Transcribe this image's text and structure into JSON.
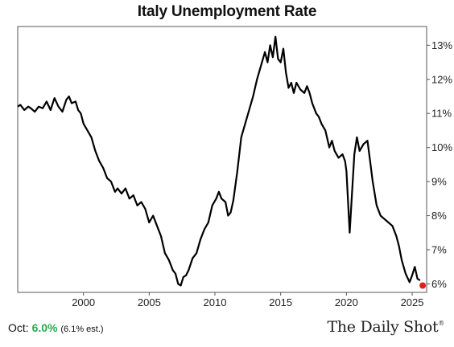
{
  "chart_data": {
    "type": "line",
    "title": "Italy Unemployment Rate",
    "xlabel": "",
    "ylabel": "",
    "xlim": [
      1995.0,
      2026.1
    ],
    "ylim": [
      5.75,
      13.55
    ],
    "grid": false,
    "x_ticks": [
      2000,
      2005,
      2010,
      2015,
      2020,
      2025
    ],
    "x_tick_labels": [
      "2000",
      "2005",
      "2010",
      "2015",
      "2020",
      "2025"
    ],
    "y_ticks": [
      6,
      7,
      8,
      9,
      10,
      11,
      12,
      13
    ],
    "y_tick_labels": [
      "6%",
      "7%",
      "8%",
      "9%",
      "10%",
      "11%",
      "12%",
      "13%"
    ],
    "y_axis_side": "right",
    "line_color": "#000000",
    "highlight_color": "#e0201c",
    "series": [
      {
        "points": [
          [
            1995.0,
            11.2
          ],
          [
            1995.2,
            11.25
          ],
          [
            1995.5,
            11.1
          ],
          [
            1995.8,
            11.2
          ],
          [
            1996.0,
            11.15
          ],
          [
            1996.3,
            11.05
          ],
          [
            1996.6,
            11.2
          ],
          [
            1996.9,
            11.15
          ],
          [
            1997.2,
            11.35
          ],
          [
            1997.5,
            11.1
          ],
          [
            1997.8,
            11.45
          ],
          [
            1998.1,
            11.2
          ],
          [
            1998.4,
            11.05
          ],
          [
            1998.7,
            11.4
          ],
          [
            1998.9,
            11.5
          ],
          [
            1999.1,
            11.3
          ],
          [
            1999.4,
            11.35
          ],
          [
            1999.6,
            11.1
          ],
          [
            1999.8,
            11.0
          ],
          [
            2000.0,
            10.7
          ],
          [
            2000.3,
            10.5
          ],
          [
            2000.6,
            10.3
          ],
          [
            2000.9,
            9.9
          ],
          [
            2001.2,
            9.6
          ],
          [
            2001.5,
            9.4
          ],
          [
            2001.8,
            9.1
          ],
          [
            2002.1,
            9.0
          ],
          [
            2002.4,
            8.7
          ],
          [
            2002.6,
            8.8
          ],
          [
            2002.9,
            8.65
          ],
          [
            2003.2,
            8.8
          ],
          [
            2003.5,
            8.5
          ],
          [
            2003.8,
            8.6
          ],
          [
            2004.1,
            8.3
          ],
          [
            2004.4,
            8.4
          ],
          [
            2004.7,
            8.2
          ],
          [
            2005.0,
            7.8
          ],
          [
            2005.3,
            8.0
          ],
          [
            2005.6,
            7.7
          ],
          [
            2005.9,
            7.4
          ],
          [
            2006.2,
            6.9
          ],
          [
            2006.5,
            6.7
          ],
          [
            2006.8,
            6.4
          ],
          [
            2007.0,
            6.3
          ],
          [
            2007.2,
            6.0
          ],
          [
            2007.4,
            5.95
          ],
          [
            2007.6,
            6.2
          ],
          [
            2007.8,
            6.25
          ],
          [
            2008.0,
            6.4
          ],
          [
            2008.3,
            6.75
          ],
          [
            2008.6,
            6.9
          ],
          [
            2008.9,
            7.3
          ],
          [
            2009.2,
            7.6
          ],
          [
            2009.5,
            7.8
          ],
          [
            2009.8,
            8.3
          ],
          [
            2010.1,
            8.5
          ],
          [
            2010.3,
            8.7
          ],
          [
            2010.5,
            8.5
          ],
          [
            2010.8,
            8.4
          ],
          [
            2011.0,
            8.0
          ],
          [
            2011.2,
            8.1
          ],
          [
            2011.4,
            8.45
          ],
          [
            2011.7,
            9.3
          ],
          [
            2012.0,
            10.3
          ],
          [
            2012.3,
            10.7
          ],
          [
            2012.6,
            11.1
          ],
          [
            2012.9,
            11.5
          ],
          [
            2013.2,
            12.0
          ],
          [
            2013.5,
            12.4
          ],
          [
            2013.8,
            12.8
          ],
          [
            2014.0,
            12.5
          ],
          [
            2014.2,
            13.0
          ],
          [
            2014.4,
            12.65
          ],
          [
            2014.6,
            13.25
          ],
          [
            2014.8,
            12.6
          ],
          [
            2015.0,
            12.5
          ],
          [
            2015.2,
            12.9
          ],
          [
            2015.4,
            12.2
          ],
          [
            2015.6,
            11.75
          ],
          [
            2015.8,
            11.9
          ],
          [
            2016.0,
            11.6
          ],
          [
            2016.2,
            11.9
          ],
          [
            2016.5,
            11.7
          ],
          [
            2016.8,
            11.6
          ],
          [
            2017.0,
            11.8
          ],
          [
            2017.2,
            11.6
          ],
          [
            2017.4,
            11.3
          ],
          [
            2017.7,
            11.0
          ],
          [
            2017.9,
            10.9
          ],
          [
            2018.1,
            10.7
          ],
          [
            2018.4,
            10.5
          ],
          [
            2018.7,
            10.0
          ],
          [
            2018.9,
            10.2
          ],
          [
            2019.1,
            9.9
          ],
          [
            2019.4,
            9.7
          ],
          [
            2019.7,
            9.8
          ],
          [
            2019.9,
            9.6
          ],
          [
            2020.0,
            9.3
          ],
          [
            2020.25,
            7.5
          ],
          [
            2020.4,
            8.5
          ],
          [
            2020.6,
            9.8
          ],
          [
            2020.8,
            10.3
          ],
          [
            2021.0,
            9.9
          ],
          [
            2021.3,
            10.1
          ],
          [
            2021.6,
            10.2
          ],
          [
            2021.8,
            9.6
          ],
          [
            2022.0,
            9.0
          ],
          [
            2022.3,
            8.3
          ],
          [
            2022.6,
            8.0
          ],
          [
            2022.9,
            7.9
          ],
          [
            2023.2,
            7.8
          ],
          [
            2023.5,
            7.7
          ],
          [
            2023.8,
            7.4
          ],
          [
            2024.0,
            7.1
          ],
          [
            2024.2,
            6.7
          ],
          [
            2024.5,
            6.3
          ],
          [
            2024.8,
            6.05
          ],
          [
            2025.0,
            6.25
          ],
          [
            2025.2,
            6.5
          ],
          [
            2025.4,
            6.15
          ],
          [
            2025.6,
            6.1
          ]
        ]
      }
    ],
    "highlight_point": [
      2025.8,
      5.95
    ]
  },
  "footer": {
    "label": "Oct:",
    "value": "6.0%",
    "estimate": "(6.1% est.)"
  },
  "brand": {
    "name": "The Daily Shot",
    "mark": "®"
  }
}
